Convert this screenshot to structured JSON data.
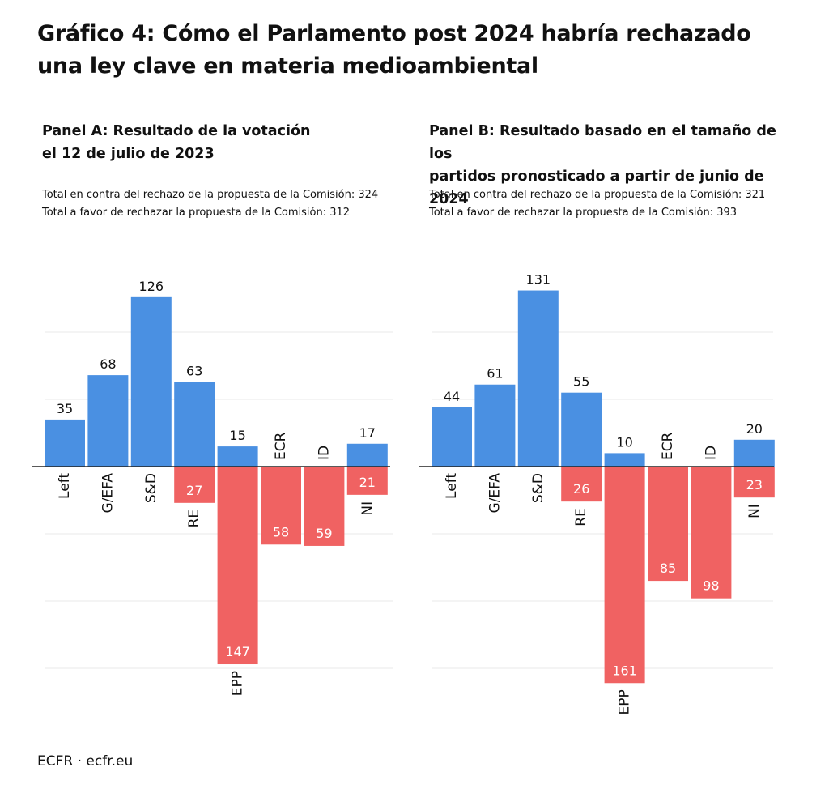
{
  "title_line1": "Gráfico 4: Cómo el Parlamento post 2024 habría rechazado",
  "title_line2": "una ley clave en materia medioambiental",
  "footer": "ECFR · ecfr.eu",
  "colors": {
    "against": "#4a90e2",
    "favor": "#f06262",
    "grid": "#e8e8e8",
    "axis": "#222222"
  },
  "chart_data": [
    {
      "type": "bar",
      "title_line1": "Panel A: Resultado de la votación",
      "title_line2": "el 12 de julio de 2023",
      "total_line1": "Total en contra del rechazo de la propuesta de la Comisión: 324",
      "total_line2": "Total a favor de rechazar la propuesta de la Comisión: 312",
      "categories": [
        "Left",
        "G/EFA",
        "S&D",
        "RE",
        "EPP",
        "ECR",
        "ID",
        "NI"
      ],
      "series": [
        {
          "values": [
            35,
            68,
            126,
            63,
            15,
            0,
            0,
            17
          ]
        },
        {
          "values": [
            0,
            0,
            0,
            27,
            147,
            58,
            59,
            21
          ]
        }
      ]
    },
    {
      "type": "bar",
      "title_line1": "Panel B: Resultado basado en el tamaño de los",
      "title_line2": "partidos pronosticado a partir de junio de 2024",
      "total_line1": "Total en contra del rechazo de la propuesta de la Comisión: 321",
      "total_line2": "Total a favor de rechazar la propuesta de la Comisión: 393",
      "categories": [
        "Left",
        "G/EFA",
        "S&D",
        "RE",
        "EPP",
        "ECR",
        "ID",
        "NI"
      ],
      "series": [
        {
          "values": [
            44,
            61,
            131,
            55,
            10,
            0,
            0,
            20
          ]
        },
        {
          "values": [
            0,
            0,
            0,
            26,
            161,
            85,
            98,
            23
          ]
        }
      ]
    }
  ]
}
